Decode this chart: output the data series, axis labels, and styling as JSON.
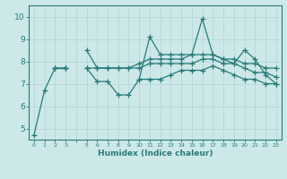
{
  "xlabel": "Humidex (Indice chaleur)",
  "bg_color": "#cce8e8",
  "grid_color": "#b8d8d8",
  "line_color": "#2a7a7a",
  "xlim": [
    -0.5,
    23.5
  ],
  "ylim": [
    4.5,
    10.5
  ],
  "yticks": [
    5,
    6,
    7,
    8,
    9,
    10
  ],
  "xtick_labels": [
    "0",
    "1",
    "2",
    "3",
    "",
    "5",
    "6",
    "7",
    "8",
    "9",
    "10",
    "11",
    "12",
    "13",
    "14",
    "15",
    "16",
    "17",
    "18",
    "19",
    "20",
    "21",
    "22",
    "23"
  ],
  "series": [
    [
      4.7,
      6.7,
      7.7,
      7.7,
      null,
      7.7,
      7.1,
      7.1,
      6.5,
      6.5,
      7.2,
      9.1,
      8.3,
      8.3,
      8.3,
      8.3,
      9.9,
      8.3,
      8.1,
      7.9,
      8.5,
      8.1,
      7.4,
      7.0
    ],
    [
      null,
      null,
      7.7,
      7.7,
      null,
      8.5,
      7.7,
      7.7,
      7.7,
      7.7,
      7.9,
      8.1,
      8.1,
      8.1,
      8.1,
      8.3,
      8.3,
      8.3,
      8.1,
      8.1,
      7.9,
      7.9,
      7.7,
      7.7
    ],
    [
      null,
      null,
      7.7,
      7.7,
      null,
      7.7,
      7.7,
      7.7,
      7.7,
      7.7,
      7.7,
      7.9,
      7.9,
      7.9,
      7.9,
      7.9,
      8.1,
      8.1,
      7.9,
      7.9,
      7.7,
      7.5,
      7.5,
      7.3
    ],
    [
      null,
      null,
      null,
      null,
      null,
      null,
      null,
      null,
      null,
      null,
      7.2,
      7.2,
      7.2,
      7.4,
      7.6,
      7.6,
      7.6,
      7.8,
      7.6,
      7.4,
      7.2,
      7.2,
      7.0,
      7.0
    ]
  ]
}
